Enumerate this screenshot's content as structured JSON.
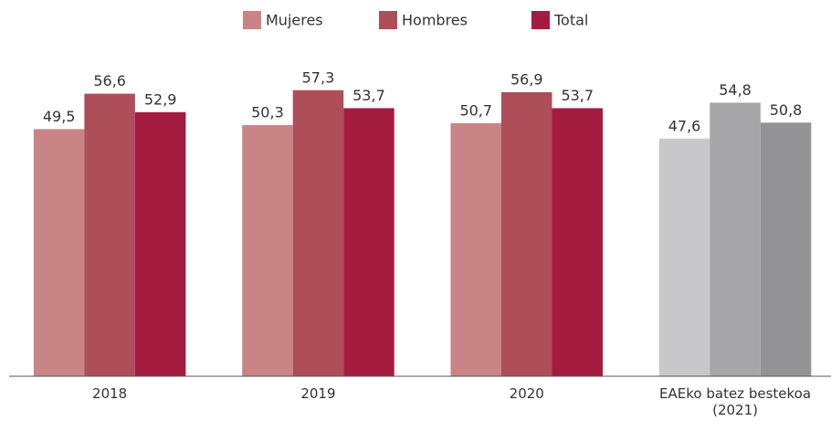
{
  "chart_data": {
    "type": "bar",
    "categories": [
      "2018",
      "2019",
      "2020",
      "EAEko batez bestekoa (2021)"
    ],
    "series": [
      {
        "name": "Mujeres",
        "color": "#c98486",
        "colors": [
          "#c98486",
          "#c98486",
          "#c98486",
          "#c8c8ca"
        ],
        "values": [
          49.5,
          50.3,
          50.7,
          47.6
        ],
        "value_labels": [
          "49,5",
          "50,3",
          "50,7",
          "47,6"
        ]
      },
      {
        "name": "Hombres",
        "color": "#ad4e58",
        "colors": [
          "#ad4e58",
          "#ad4e58",
          "#ad4e58",
          "#a6a6a9"
        ],
        "values": [
          56.6,
          57.3,
          56.9,
          54.8
        ],
        "value_labels": [
          "56,6",
          "57,3",
          "56,9",
          "54,8"
        ]
      },
      {
        "name": "Total",
        "color": "#a31c40",
        "colors": [
          "#a31c40",
          "#a31c40",
          "#a31c40",
          "#939396"
        ],
        "values": [
          52.9,
          53.7,
          53.7,
          50.8
        ],
        "value_labels": [
          "52,9",
          "53,7",
          "53,7",
          "50,8"
        ]
      }
    ],
    "ylim": [
      0,
      75
    ],
    "legend": "top"
  }
}
